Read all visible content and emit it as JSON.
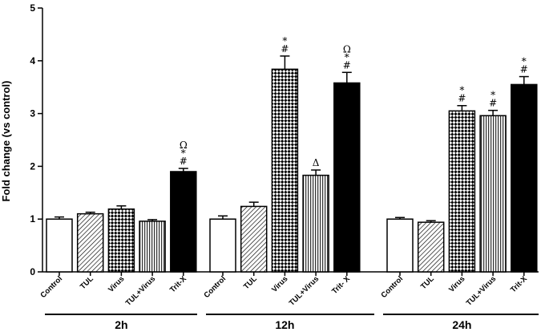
{
  "chart_data": {
    "type": "bar",
    "ylabel": "Fold change (vs control)",
    "ylim": [
      0,
      5
    ],
    "yticks": [
      "0",
      "1",
      "2",
      "3",
      "4",
      "5"
    ],
    "categories": [
      "Control",
      "TUL",
      "Virus",
      "TUL+Virus",
      "Trit-X"
    ],
    "category_patterns": [
      "white",
      "diagonal",
      "checker",
      "vertical",
      "black"
    ],
    "groups": [
      {
        "label": "2h",
        "tick_labels": [
          "Control",
          "TUL",
          "Virus",
          "TUL+Virus",
          "Trit-X"
        ],
        "values": [
          1.0,
          1.1,
          1.19,
          0.96,
          1.9
        ],
        "errors": [
          0.04,
          0.03,
          0.06,
          0.03,
          0.06
        ],
        "annotations": [
          "",
          "",
          "",
          "",
          "Ω\n*\n#"
        ]
      },
      {
        "label": "12h",
        "tick_labels": [
          "Control",
          "TUL",
          "Virus",
          "TUL+Virus",
          "Trit- X"
        ],
        "values": [
          1.0,
          1.24,
          3.84,
          1.83,
          3.58
        ],
        "errors": [
          0.06,
          0.08,
          0.25,
          0.1,
          0.2
        ],
        "annotations": [
          "",
          "",
          "*\n#",
          "Δ",
          "Ω\n*\n#"
        ]
      },
      {
        "label": "24h",
        "tick_labels": [
          "Control",
          "TUL",
          "Virus",
          "TUL+Virus",
          "Trit-X"
        ],
        "values": [
          1.0,
          0.94,
          3.05,
          2.96,
          3.55
        ],
        "errors": [
          0.03,
          0.03,
          0.1,
          0.1,
          0.15
        ],
        "annotations": [
          "",
          "",
          "*\n#",
          "*\n#",
          "*\n#"
        ]
      }
    ]
  }
}
